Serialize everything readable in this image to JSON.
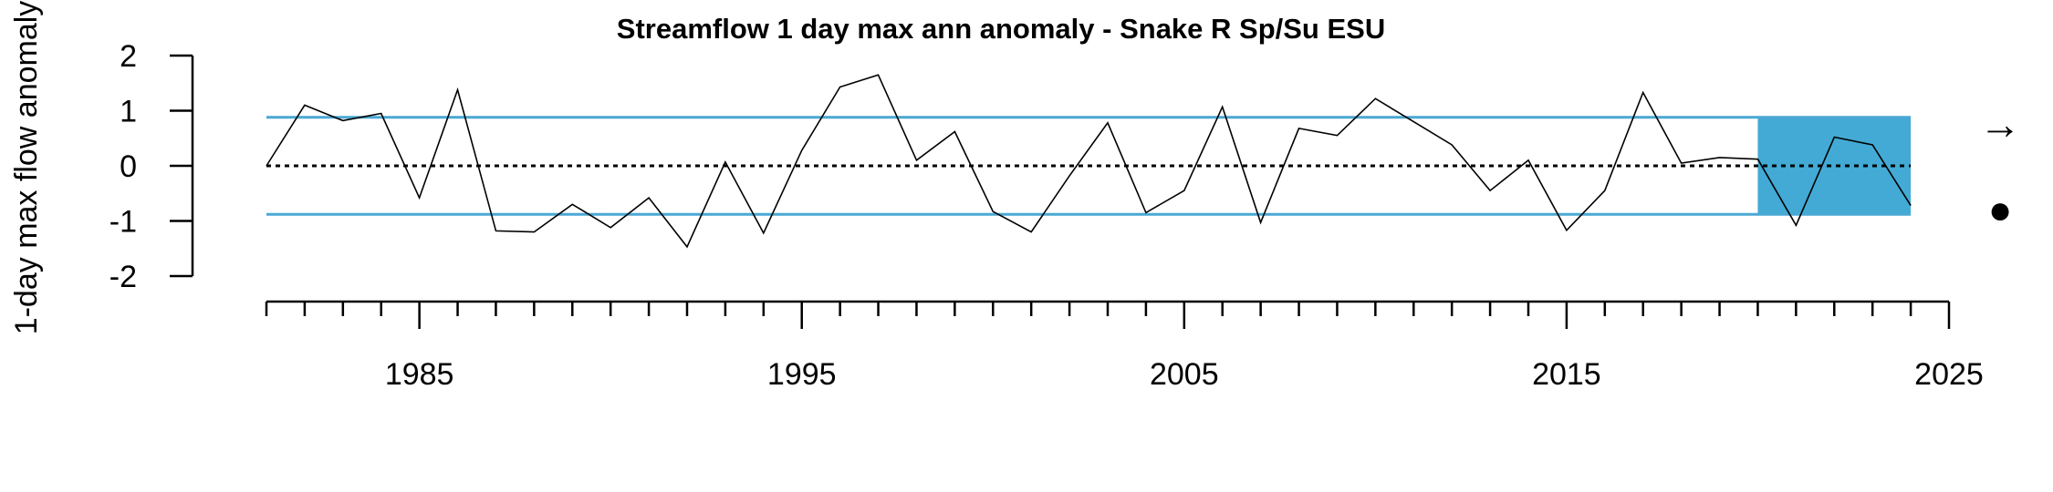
{
  "chart_data": {
    "type": "line",
    "title": "Streamflow 1 day max ann anomaly - Snake R Sp/Su ESU",
    "ylabel": "1-day max flow anomaly",
    "xlabel": "",
    "ylim": [
      -2,
      2
    ],
    "xlim": [
      1981,
      2025
    ],
    "y_ticks": [
      "2",
      "1",
      "0",
      "-1",
      "-2"
    ],
    "x_tick_labels": [
      "1985",
      "1995",
      "2005",
      "2015",
      "2025"
    ],
    "reference_lines": {
      "mean": 0,
      "upper_sd": 0.88,
      "lower_sd": -0.88
    },
    "recent_period": {
      "start": 2020,
      "end": 2024
    },
    "trend_symbol": "→",
    "mean_symbol": "●",
    "colors": {
      "reference": "#4aa8d4",
      "recent_fill": "#43aad5",
      "line": "#000000"
    },
    "series": [
      {
        "x": [
          1981,
          1982,
          1983,
          1984,
          1985,
          1986,
          1987,
          1988,
          1989,
          1990,
          1991,
          1992,
          1993,
          1994,
          1995,
          1996,
          1997,
          1998,
          1999,
          2000,
          2001,
          2002,
          2003,
          2004,
          2005,
          2006,
          2007,
          2008,
          2009,
          2010,
          2011,
          2012,
          2013,
          2014,
          2015,
          2016,
          2017,
          2018,
          2019,
          2020,
          2021,
          2022,
          2023,
          2024
        ],
        "values": [
          0.0,
          1.1,
          0.82,
          0.95,
          -0.58,
          1.38,
          -1.18,
          -1.2,
          -0.7,
          -1.12,
          -0.58,
          -1.47,
          0.07,
          -1.22,
          0.28,
          1.43,
          1.65,
          0.1,
          0.62,
          -0.83,
          -1.2,
          -0.18,
          0.78,
          -0.85,
          -0.45,
          1.07,
          -1.03,
          0.68,
          0.55,
          1.22,
          0.8,
          0.38,
          -0.45,
          0.1,
          -1.17,
          -0.45,
          1.33,
          0.05,
          0.15,
          0.12,
          -1.08,
          0.52,
          0.38,
          -0.72
        ]
      }
    ]
  }
}
